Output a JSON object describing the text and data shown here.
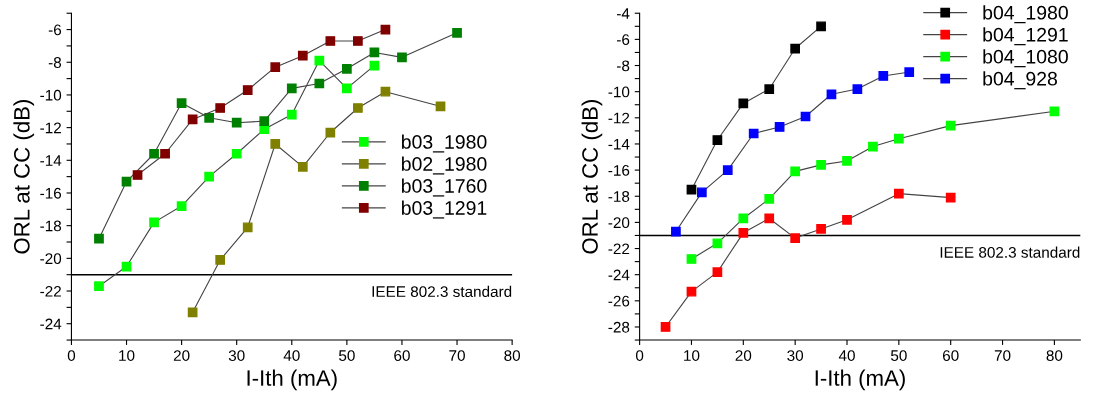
{
  "chart_data": [
    {
      "type": "line",
      "xlabel": "I-Ith (mA)",
      "ylabel": "ORL at CC (dB)",
      "marker": "square",
      "legend": "right",
      "grid": false,
      "xlim": [
        0,
        80
      ],
      "xticks": [
        0,
        10,
        20,
        30,
        40,
        50,
        60,
        70,
        80
      ],
      "ylim": [
        -25,
        -5
      ],
      "yticks": [
        {
          "value": -25,
          "label": null
        },
        -24,
        {
          "value": -23,
          "label": null
        },
        -22,
        {
          "value": -21,
          "label": null
        },
        -20,
        {
          "value": -19,
          "label": null
        },
        -18,
        {
          "value": -17,
          "label": null
        },
        -16,
        {
          "value": -15,
          "label": null
        },
        -14,
        {
          "value": -13,
          "label": null
        },
        -12,
        {
          "value": -11,
          "label": null
        },
        -10,
        {
          "value": -9,
          "label": null
        },
        -8,
        {
          "value": -7,
          "label": null
        },
        -6,
        {
          "value": -5,
          "label": null
        }
      ],
      "ref_lines": [
        {
          "axis": "y",
          "value": -21,
          "label": "IEEE 802.3 standard",
          "color": "#000000"
        }
      ],
      "series": [
        {
          "name": "b03_1980",
          "color": "#00ff00",
          "x": [
            5,
            10,
            15,
            20,
            25,
            30,
            35,
            40,
            45,
            50,
            55
          ],
          "values": [
            -21.7,
            -20.5,
            -17.8,
            -16.8,
            -15.0,
            -13.6,
            -12.1,
            -11.2,
            -7.9,
            -9.6,
            -8.2
          ]
        },
        {
          "name": "b02_1980",
          "color": "#808000",
          "x": [
            22,
            27,
            32,
            37,
            42,
            47,
            52,
            57,
            67
          ],
          "values": [
            -23.3,
            -20.1,
            -18.1,
            -13.0,
            -14.4,
            -12.3,
            -10.8,
            -9.8,
            -10.7
          ]
        },
        {
          "name": "b03_1760",
          "color": "#008000",
          "x": [
            5,
            10,
            15,
            20,
            25,
            30,
            35,
            40,
            45,
            50,
            55,
            60,
            70
          ],
          "values": [
            -18.8,
            -15.3,
            -13.6,
            -10.5,
            -11.4,
            -11.7,
            -11.6,
            -9.6,
            -9.3,
            -8.4,
            -7.4,
            -7.7,
            -6.2
          ]
        },
        {
          "name": "b03_1291",
          "color": "#800000",
          "x": [
            12,
            17,
            22,
            27,
            32,
            37,
            42,
            47,
            52,
            57
          ],
          "values": [
            -14.9,
            -13.6,
            -11.5,
            -10.8,
            -9.7,
            -8.3,
            -7.6,
            -6.7,
            -6.7,
            -6.0
          ]
        }
      ]
    },
    {
      "type": "line",
      "xlabel": "I-Ith (mA)",
      "ylabel": "ORL at CC (dB)",
      "marker": "square",
      "legend": "top right",
      "grid": false,
      "xlim": [
        0,
        85
      ],
      "xticks": [
        0,
        10,
        20,
        30,
        40,
        50,
        60,
        70,
        80
      ],
      "ylim": [
        -29,
        -4
      ],
      "yticks": [
        {
          "value": -29,
          "label": null
        },
        -28,
        {
          "value": -27,
          "label": null
        },
        -26,
        {
          "value": -25,
          "label": null
        },
        -24,
        {
          "value": -23,
          "label": null
        },
        -22,
        {
          "value": -21,
          "label": null
        },
        -20,
        {
          "value": -19,
          "label": null
        },
        -18,
        {
          "value": -17,
          "label": null
        },
        -16,
        {
          "value": -15,
          "label": null
        },
        -14,
        {
          "value": -13,
          "label": null
        },
        -12,
        {
          "value": -11,
          "label": null
        },
        -10,
        {
          "value": -9,
          "label": null
        },
        -8,
        {
          "value": -7,
          "label": null
        },
        -6,
        {
          "value": -5,
          "label": null
        },
        -4
      ],
      "ref_lines": [
        {
          "axis": "y",
          "value": -21,
          "label": "IEEE 802.3 standard",
          "color": "#000000"
        }
      ],
      "series": [
        {
          "name": "b04_1980",
          "color": "#000000",
          "x": [
            10,
            15,
            20,
            25,
            30,
            35
          ],
          "values": [
            -17.5,
            -13.7,
            -10.9,
            -9.8,
            -6.7,
            -5.0
          ]
        },
        {
          "name": "b04_1291",
          "color": "#ff0000",
          "x": [
            5,
            10,
            15,
            20,
            25,
            30,
            35,
            40,
            50,
            60
          ],
          "values": [
            -28.0,
            -25.3,
            -23.8,
            -20.8,
            -19.7,
            -21.2,
            -20.5,
            -19.8,
            -17.8,
            -18.1
          ]
        },
        {
          "name": "b04_1080",
          "color": "#00ff00",
          "x": [
            10,
            15,
            20,
            25,
            30,
            35,
            40,
            45,
            50,
            60,
            80
          ],
          "values": [
            -22.8,
            -21.6,
            -19.7,
            -18.2,
            -16.1,
            -15.6,
            -15.3,
            -14.2,
            -13.6,
            -12.6,
            -11.5
          ]
        },
        {
          "name": "b04_928",
          "color": "#0000ff",
          "x": [
            7,
            12,
            17,
            22,
            27,
            32,
            37,
            42,
            47,
            52
          ],
          "values": [
            -20.7,
            -17.7,
            -16.0,
            -13.2,
            -12.7,
            -11.9,
            -10.2,
            -9.8,
            -8.8,
            -8.5
          ]
        }
      ]
    }
  ]
}
